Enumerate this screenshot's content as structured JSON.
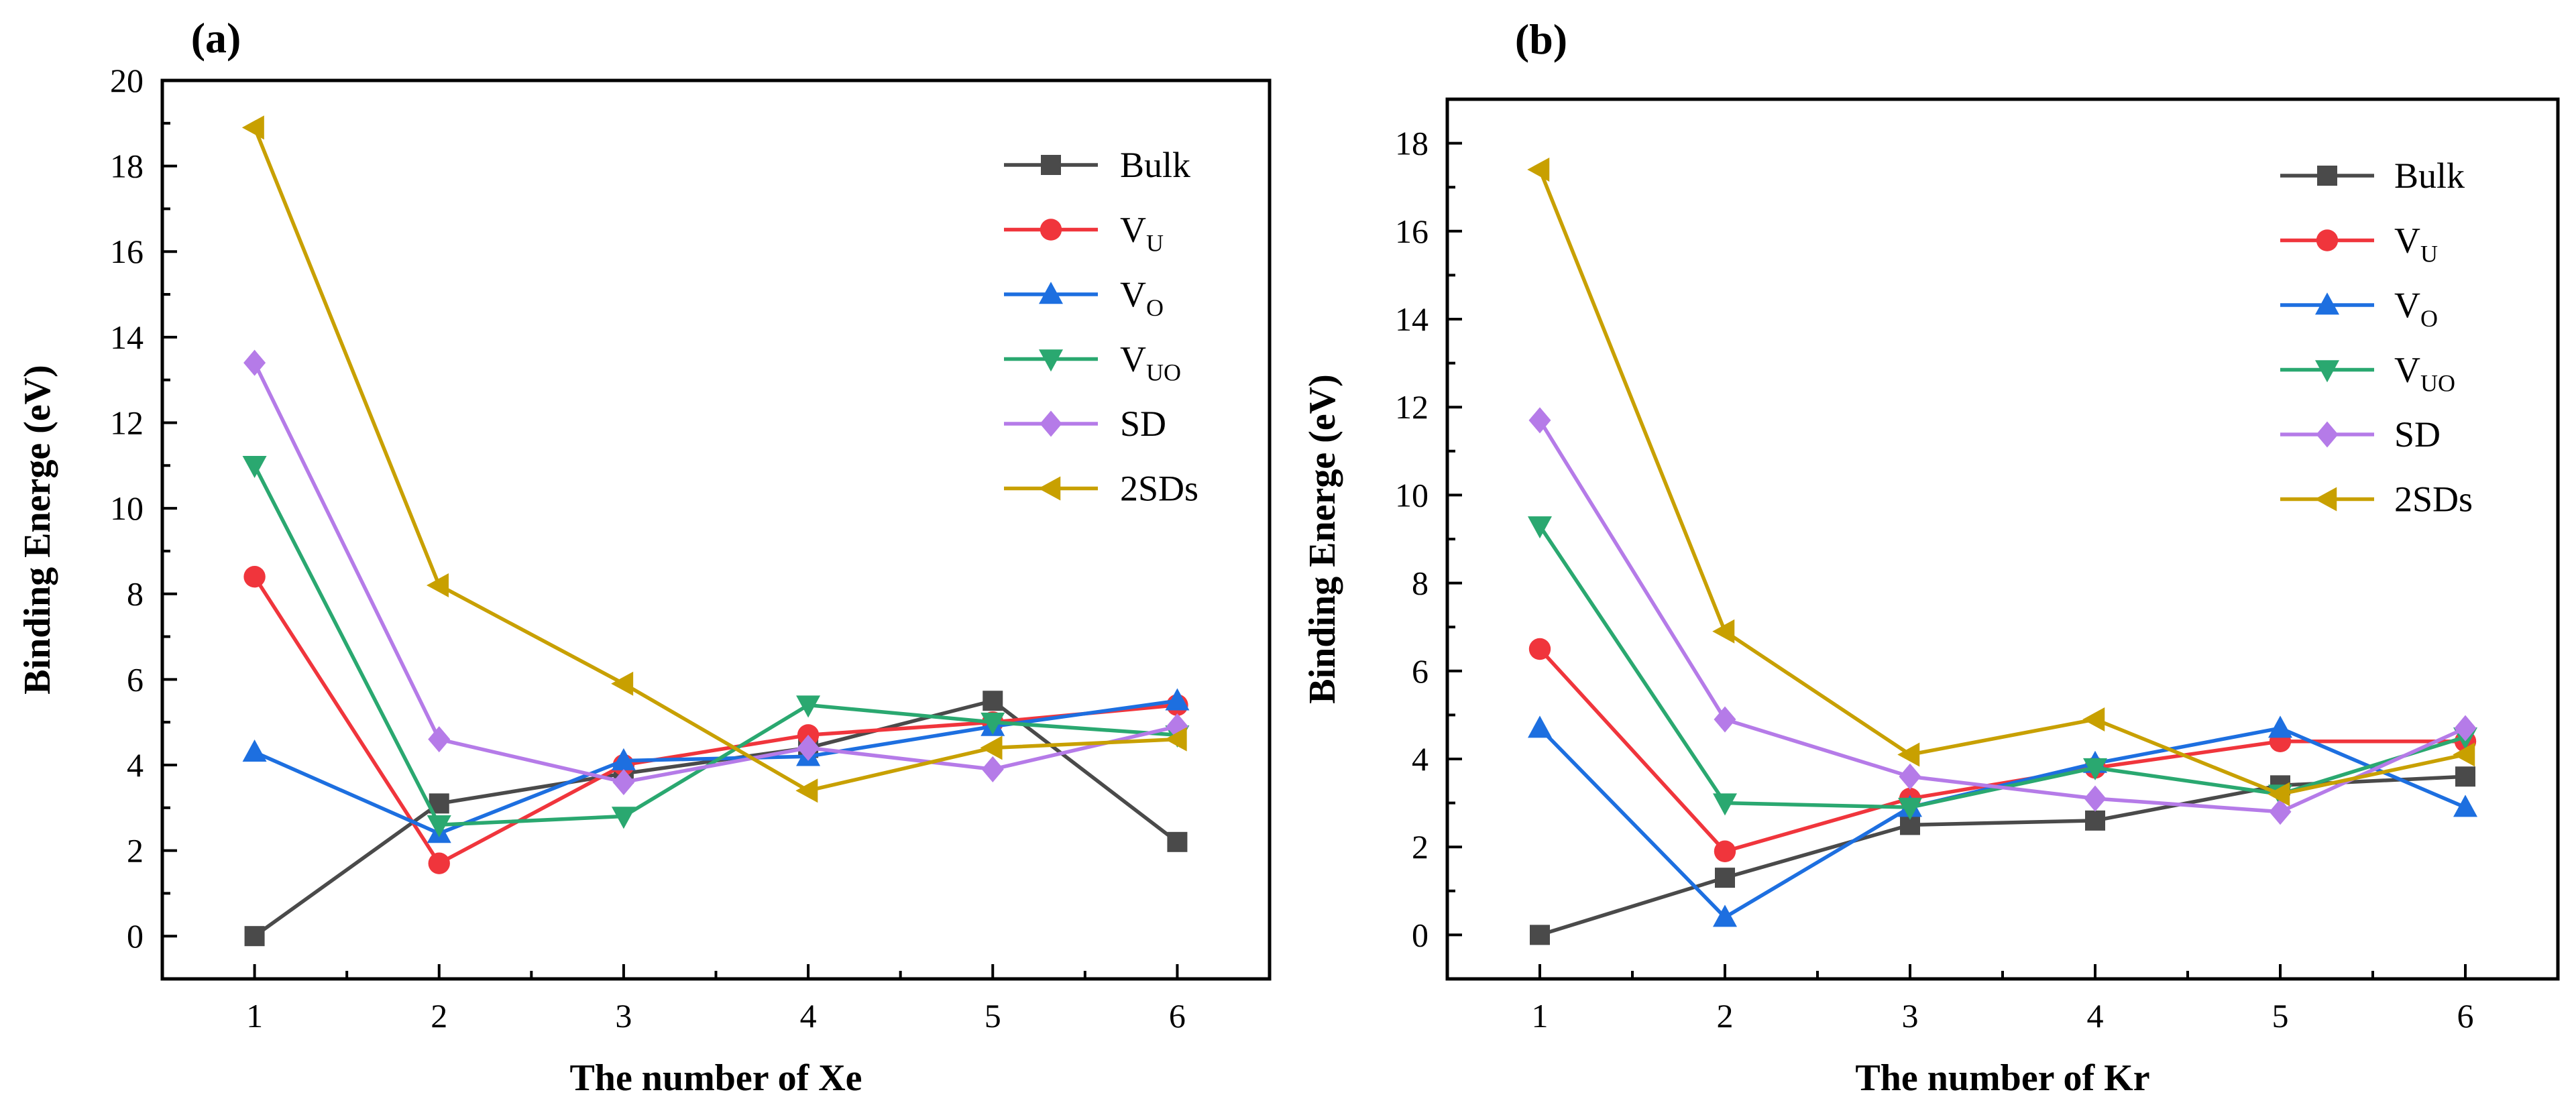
{
  "chart_data": [
    {
      "type": "line",
      "panel_label": "(a)",
      "xlabel": "The number of Xe",
      "ylabel": "Binding Energe (eV)",
      "x": [
        1,
        2,
        3,
        4,
        5,
        6
      ],
      "xlim": [
        0.5,
        6.5
      ],
      "ylim": [
        -1,
        20
      ],
      "yticks": [
        0,
        2,
        4,
        6,
        8,
        10,
        12,
        14,
        16,
        18,
        20
      ],
      "grid": false,
      "legend_position": "top-right",
      "series": [
        {
          "name": "Bulk",
          "base": "Bulk",
          "sub": "",
          "color": "#4a4a4a",
          "marker": "square",
          "values": [
            0.0,
            3.1,
            3.8,
            4.4,
            5.5,
            2.2
          ]
        },
        {
          "name": "VU",
          "base": "V",
          "sub": "U",
          "color": "#f0353c",
          "marker": "circle",
          "values": [
            8.4,
            1.7,
            4.0,
            4.7,
            5.0,
            5.4
          ]
        },
        {
          "name": "VO",
          "base": "V",
          "sub": "O",
          "color": "#1d6fe0",
          "marker": "triangle-up",
          "values": [
            4.3,
            2.4,
            4.1,
            4.2,
            4.9,
            5.5
          ]
        },
        {
          "name": "VUO",
          "base": "V",
          "sub": "UO",
          "color": "#2aa870",
          "marker": "triangle-down",
          "values": [
            11.0,
            2.6,
            2.8,
            5.4,
            5.0,
            4.7
          ]
        },
        {
          "name": "SD",
          "base": "SD",
          "sub": "",
          "color": "#b57be8",
          "marker": "diamond",
          "values": [
            13.4,
            4.6,
            3.6,
            4.4,
            3.9,
            4.9
          ]
        },
        {
          "name": "2SDs",
          "base": "2SDs",
          "sub": "",
          "color": "#c8a000",
          "marker": "triangle-left",
          "values": [
            18.9,
            8.2,
            5.9,
            3.4,
            4.4,
            4.6
          ]
        }
      ]
    },
    {
      "type": "line",
      "panel_label": "(b)",
      "xlabel": "The number of Kr",
      "ylabel": "Binding Energe (eV)",
      "x": [
        1,
        2,
        3,
        4,
        5,
        6
      ],
      "xlim": [
        0.5,
        6.5
      ],
      "ylim": [
        -1,
        19
      ],
      "yticks": [
        0,
        2,
        4,
        6,
        8,
        10,
        12,
        14,
        16,
        18
      ],
      "grid": false,
      "legend_position": "top-right",
      "series": [
        {
          "name": "Bulk",
          "base": "Bulk",
          "sub": "",
          "color": "#4a4a4a",
          "marker": "square",
          "values": [
            0.0,
            1.3,
            2.5,
            2.6,
            3.4,
            3.6
          ]
        },
        {
          "name": "VU",
          "base": "V",
          "sub": "U",
          "color": "#f0353c",
          "marker": "circle",
          "values": [
            6.5,
            1.9,
            3.1,
            3.8,
            4.4,
            4.4
          ]
        },
        {
          "name": "VO",
          "base": "V",
          "sub": "O",
          "color": "#1d6fe0",
          "marker": "triangle-up",
          "values": [
            4.7,
            0.4,
            2.9,
            3.9,
            4.7,
            2.9
          ]
        },
        {
          "name": "VUO",
          "base": "V",
          "sub": "UO",
          "color": "#2aa870",
          "marker": "triangle-down",
          "values": [
            9.3,
            3.0,
            2.9,
            3.8,
            3.2,
            4.5
          ]
        },
        {
          "name": "SD",
          "base": "SD",
          "sub": "",
          "color": "#b57be8",
          "marker": "diamond",
          "values": [
            11.7,
            4.9,
            3.6,
            3.1,
            2.8,
            4.7
          ]
        },
        {
          "name": "2SDs",
          "base": "2SDs",
          "sub": "",
          "color": "#c8a000",
          "marker": "triangle-left",
          "values": [
            17.4,
            6.9,
            4.1,
            4.9,
            3.2,
            4.1
          ]
        }
      ]
    }
  ]
}
